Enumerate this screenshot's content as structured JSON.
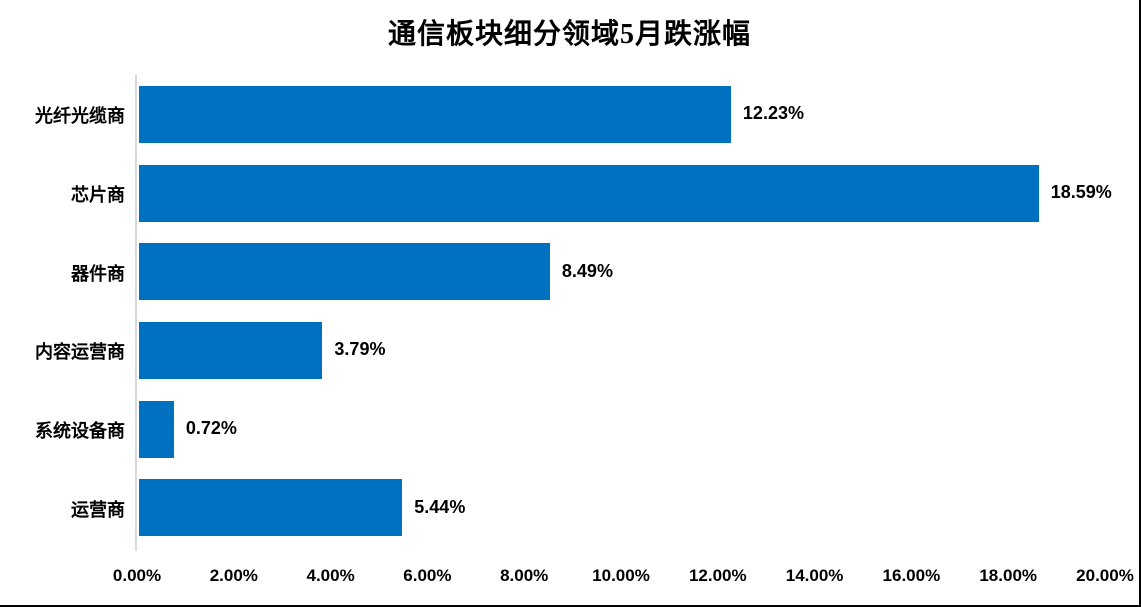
{
  "chart_data": {
    "type": "bar",
    "orientation": "horizontal",
    "title": "通信板块细分领域5月跌涨幅",
    "categories": [
      "光纤光缆商",
      "芯片商",
      "器件商",
      "内容运营商",
      "系统设备商",
      "运营商"
    ],
    "values": [
      12.23,
      18.59,
      8.49,
      3.79,
      0.72,
      5.44
    ],
    "value_labels": [
      "12.23%",
      "18.59%",
      "8.49%",
      "3.79%",
      "0.72%",
      "5.44%"
    ],
    "xlabel": "",
    "ylabel": "",
    "xlim": [
      0,
      20
    ],
    "x_ticks": [
      "0.00%",
      "2.00%",
      "4.00%",
      "6.00%",
      "8.00%",
      "10.00%",
      "12.00%",
      "14.00%",
      "16.00%",
      "18.00%",
      "20.00%"
    ],
    "grid": false,
    "legend": false,
    "colors": {
      "bar": "#0070C0",
      "axis_line": "#D9D9D9",
      "text": "#000000",
      "frame_border": "#000000"
    }
  }
}
